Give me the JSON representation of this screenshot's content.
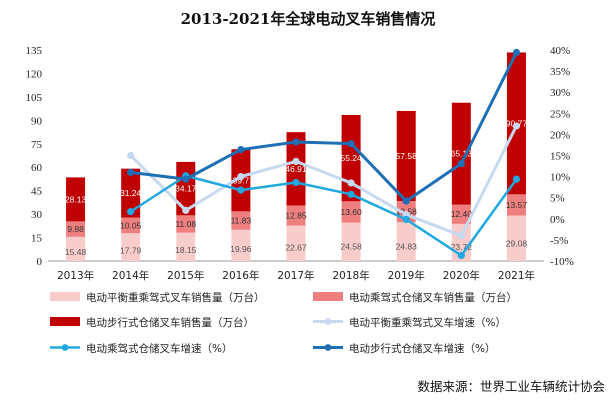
{
  "chart_data": {
    "type": "bar",
    "title": "2013-2021年全球电动叉车销售情况",
    "categories": [
      "2013年",
      "2014年",
      "2015年",
      "2016年",
      "2017年",
      "2018年",
      "2019年",
      "2020年",
      "2021年"
    ],
    "stacked_series": [
      {
        "name": "电动平衡重乘驾式叉车销售量（万台）",
        "color": "#f9cccc",
        "label_color": "#555555",
        "values": [
          15.48,
          17.79,
          18.15,
          19.96,
          22.67,
          24.58,
          24.83,
          23.72,
          29.08
        ]
      },
      {
        "name": "电动乘驾式仓储叉车销售量（万台）",
        "color": "#ef7f7f",
        "label_color": "#333333",
        "values": [
          9.88,
          10.05,
          11.08,
          11.83,
          12.85,
          13.6,
          13.58,
          12.4,
          13.57
        ]
      },
      {
        "name": "电动步行式仓储叉车销售量（万台）",
        "color": "#c00000",
        "label_color": "#ffffff",
        "values": [
          28.13,
          31.24,
          34.17,
          39.7,
          46.91,
          55.24,
          57.58,
          65.13,
          90.77
        ],
        "labels": [
          "28.13",
          "31.24",
          "34.17",
          "39.7",
          "46.91",
          "55.24",
          "57.58",
          "65.13",
          "90.77"
        ]
      }
    ],
    "line_series": [
      {
        "name": "电动平衡重乘驾式叉车增速（%）",
        "color": "#c6d9f0",
        "width": 3,
        "values": [
          null,
          15,
          2,
          10,
          13.6,
          8.5,
          1,
          -4,
          22
        ]
      },
      {
        "name": "电动乘驾式仓储叉车增速（%）",
        "color": "#1fa9e0",
        "width": 2.5,
        "values": [
          null,
          1.7,
          10.2,
          6.8,
          8.6,
          5.8,
          -0.15,
          -8.7,
          9.4
        ]
      },
      {
        "name": "电动步行式仓储叉车增速（%）",
        "color": "#1f6fb5",
        "width": 3,
        "values": [
          null,
          11,
          9.4,
          16.4,
          18.2,
          17.8,
          4.2,
          13.1,
          39.4
        ]
      }
    ],
    "y_left": {
      "min": 0,
      "max": 135,
      "ticks": [
        0,
        15,
        30,
        45,
        60,
        75,
        90,
        105,
        120,
        135
      ]
    },
    "y_right": {
      "min": -10,
      "max": 40,
      "ticks": [
        -10,
        -5,
        0,
        5,
        10,
        15,
        20,
        25,
        30,
        35,
        40
      ],
      "tick_labels": [
        "-10%",
        "-5%",
        "0%",
        "5%",
        "10%",
        "15%",
        "20%",
        "25%",
        "30%",
        "35%",
        "40%"
      ]
    },
    "grid": false,
    "legend_position": "bottom",
    "source": "数据来源：世界工业车辆统计协会"
  }
}
